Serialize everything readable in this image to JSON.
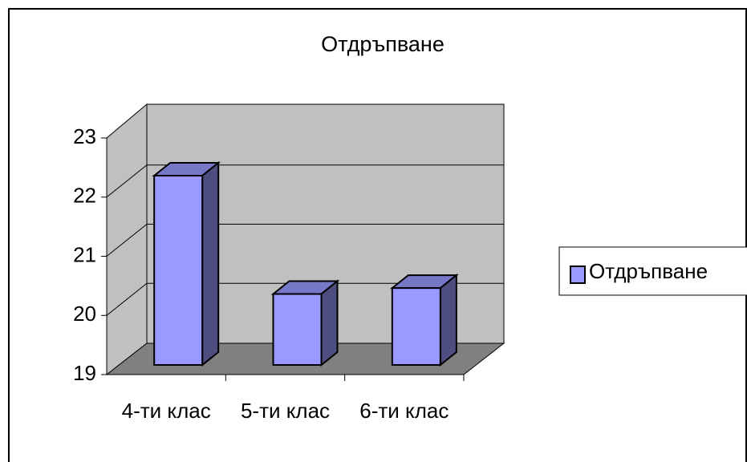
{
  "chart_data": {
    "type": "bar3d",
    "title": "Отдръпване",
    "categories": [
      "4-ти клас",
      "5-ти клас",
      "6-ти клас"
    ],
    "series": [
      {
        "name": "Отдръпване",
        "color": "#9999ff",
        "values": [
          22.2,
          20.2,
          20.3
        ]
      }
    ],
    "ylim": [
      19,
      23
    ],
    "yticks": [
      19,
      20,
      21,
      22,
      23
    ],
    "grid": true,
    "legend": "right"
  }
}
